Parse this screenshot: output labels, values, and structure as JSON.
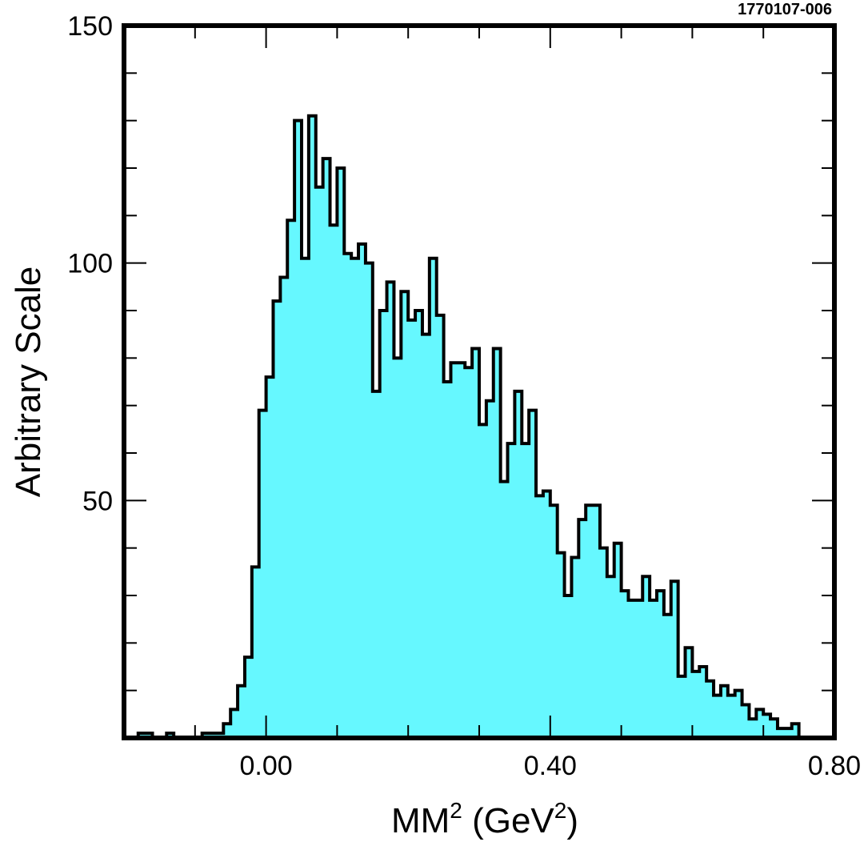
{
  "figure_id": "1770107-006",
  "chart_data": {
    "type": "histogram",
    "xlabel": {
      "main": "MM",
      "sup1": "2",
      "paren_open": " (GeV",
      "sup2": "2",
      "paren_close": ")"
    },
    "ylabel": "Arbitrary Scale",
    "xlim": [
      -0.2,
      0.8
    ],
    "ylim": [
      0,
      150
    ],
    "x_ticks": [
      {
        "value": 0.0,
        "label": "0.00"
      },
      {
        "value": 0.4,
        "label": "0.40"
      },
      {
        "value": 0.8,
        "label": "0.80"
      }
    ],
    "y_ticks": [
      {
        "value": 50,
        "label": "50"
      },
      {
        "value": 100,
        "label": "100"
      },
      {
        "value": 150,
        "label": "150"
      }
    ],
    "x_minor_step": 0.1,
    "y_minor_step": 10,
    "bin_width": 0.01,
    "fill_color": "#66f8ff",
    "line_color": "#000000",
    "bin_lows": [
      -0.18,
      -0.17,
      -0.16,
      -0.15,
      -0.14,
      -0.13,
      -0.12,
      -0.11,
      -0.1,
      -0.09,
      -0.08,
      -0.07,
      -0.06,
      -0.05,
      -0.04,
      -0.03,
      -0.02,
      -0.01,
      0.0,
      0.01,
      0.02,
      0.03,
      0.04,
      0.05,
      0.06,
      0.07,
      0.08,
      0.09,
      0.1,
      0.11,
      0.12,
      0.13,
      0.14,
      0.15,
      0.16,
      0.17,
      0.18,
      0.19,
      0.2,
      0.21,
      0.22,
      0.23,
      0.24,
      0.25,
      0.26,
      0.27,
      0.28,
      0.29,
      0.3,
      0.31,
      0.32,
      0.33,
      0.34,
      0.35,
      0.36,
      0.37,
      0.38,
      0.39,
      0.4,
      0.41,
      0.42,
      0.43,
      0.44,
      0.45,
      0.46,
      0.47,
      0.48,
      0.49,
      0.5,
      0.51,
      0.52,
      0.53,
      0.54,
      0.55,
      0.56,
      0.57,
      0.58,
      0.59,
      0.6,
      0.61,
      0.62,
      0.63,
      0.64,
      0.65,
      0.66,
      0.67,
      0.68,
      0.69,
      0.7,
      0.71,
      0.72,
      0.73,
      0.74,
      0.75
    ],
    "counts": [
      1,
      1,
      0,
      0,
      1,
      0,
      0,
      0,
      0,
      1,
      1,
      1,
      3,
      6,
      11,
      17,
      36,
      69,
      76,
      92,
      97,
      109,
      130,
      101,
      131,
      116,
      122,
      108,
      120,
      102,
      101,
      104,
      100,
      73,
      90,
      96,
      80,
      94,
      88,
      90,
      85,
      101,
      89,
      75,
      79,
      79,
      78,
      82,
      66,
      71,
      82,
      54,
      62,
      73,
      62,
      69,
      51,
      52,
      49,
      39,
      30,
      38,
      46,
      49,
      49,
      40,
      34,
      41,
      31,
      29,
      29,
      34,
      29,
      31,
      26,
      33,
      13,
      19,
      14,
      15,
      12,
      9,
      11,
      9,
      10,
      7,
      4,
      6,
      5,
      4,
      2,
      2,
      3,
      0
    ]
  }
}
